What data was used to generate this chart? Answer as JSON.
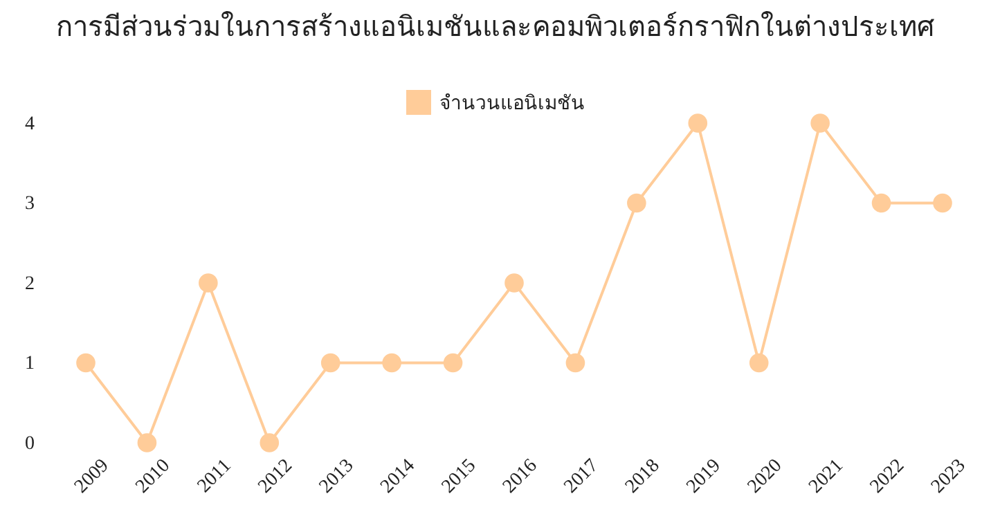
{
  "chart_data": {
    "type": "line",
    "title": "การมีส่วนร่วมในการสร้างแอนิเมชันและคอมพิวเตอร์กราฟิกในต่างประเทศ",
    "categories": [
      "2009",
      "2010",
      "2011",
      "2012",
      "2013",
      "2014",
      "2015",
      "2016",
      "2017",
      "2018",
      "2019",
      "2020",
      "2021",
      "2022",
      "2023"
    ],
    "series": [
      {
        "name": "จำนวนแอนิเมชัน",
        "color": "#ffcc99",
        "values": [
          1,
          0,
          2,
          0,
          1,
          1,
          1,
          2,
          1,
          3,
          4,
          1,
          4,
          3,
          3
        ]
      }
    ],
    "ylim": [
      0,
      4
    ],
    "yticks": [
      0,
      1,
      2,
      3,
      4
    ],
    "grid": false,
    "legend": "top",
    "marker": "circle",
    "line_style": "solid"
  }
}
